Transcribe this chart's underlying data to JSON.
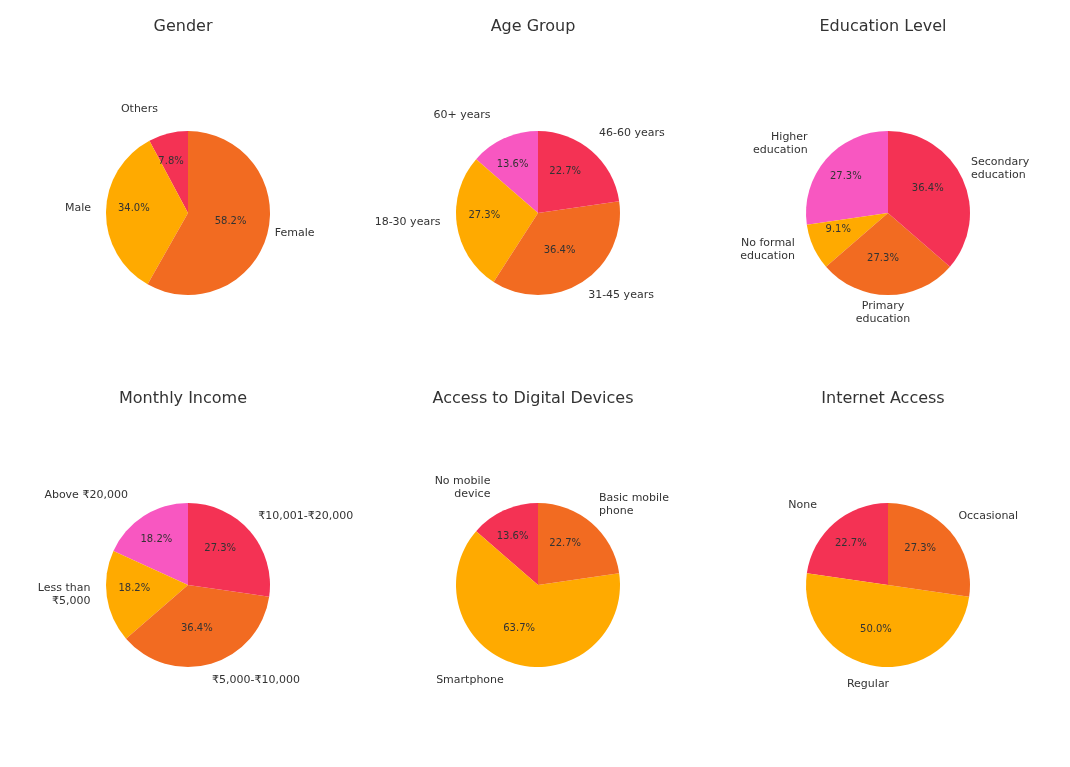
{
  "chart_data": [
    {
      "type": "pie",
      "title": "Gender",
      "categories": [
        "Others",
        "Male",
        "Female"
      ],
      "values": [
        7.8,
        34.0,
        58.2
      ],
      "colors": [
        "#f43254",
        "#ffaa00",
        "#f26b21"
      ],
      "value_labels": [
        "7.8%",
        "34.0%",
        "58.2%"
      ]
    },
    {
      "type": "pie",
      "title": "Age Group",
      "categories": [
        "60+ years",
        "18-30 years",
        "31-45 years",
        "46-60 years"
      ],
      "values": [
        13.6,
        27.3,
        36.4,
        22.7
      ],
      "colors": [
        "#f857c1",
        "#ffaa00",
        "#f26b21",
        "#f43254"
      ],
      "value_labels": [
        "13.6%",
        "27.3%",
        "36.4%",
        "22.7%"
      ]
    },
    {
      "type": "pie",
      "title": "Education Level",
      "categories": [
        "Higher education",
        "No formal education",
        "Primary education",
        "Secondary education"
      ],
      "values": [
        27.3,
        9.1,
        27.3,
        36.4
      ],
      "colors": [
        "#f857c1",
        "#ffaa00",
        "#f26b21",
        "#f43254"
      ],
      "value_labels": [
        "27.3%",
        "9.1%",
        "27.3%",
        "36.4%"
      ]
    },
    {
      "type": "pie",
      "title": "Monthly Income",
      "categories": [
        "Above ₹20,000",
        "Less than ₹5,000",
        "₹5,000-₹10,000",
        "₹10,001-₹20,000"
      ],
      "values": [
        18.2,
        18.2,
        36.4,
        27.3
      ],
      "colors": [
        "#f857c1",
        "#ffaa00",
        "#f26b21",
        "#f43254"
      ],
      "value_labels": [
        "18.2%",
        "18.2%",
        "36.4%",
        "27.3%"
      ]
    },
    {
      "type": "pie",
      "title": "Access to Digital Devices",
      "categories": [
        "No mobile device",
        "Smartphone",
        "Basic mobile phone"
      ],
      "values": [
        13.6,
        63.7,
        22.7
      ],
      "colors": [
        "#f43254",
        "#ffaa00",
        "#f26b21"
      ],
      "value_labels": [
        "13.6%",
        "63.7%",
        "22.7%"
      ]
    },
    {
      "type": "pie",
      "title": "Internet Access",
      "categories": [
        "None",
        "Regular",
        "Occasional"
      ],
      "values": [
        22.7,
        50.0,
        27.3
      ],
      "colors": [
        "#f43254",
        "#ffaa00",
        "#f26b21"
      ],
      "value_labels": [
        "22.7%",
        "50.0%",
        "27.3%"
      ]
    }
  ]
}
